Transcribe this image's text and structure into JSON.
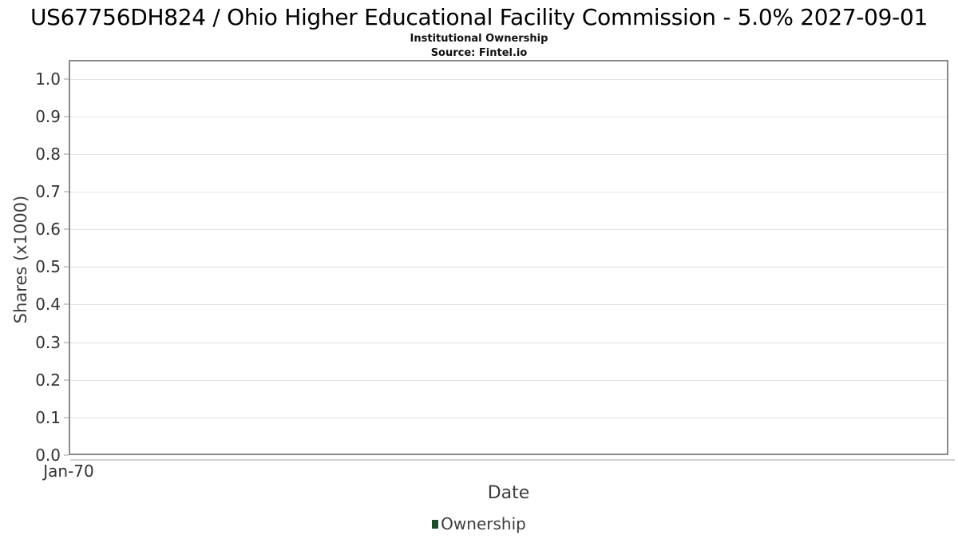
{
  "page": {
    "title": "US67756DH824 / Ohio Higher Educational Facility Commission - 5.0% 2027-09-01",
    "subtitle": "Institutional Ownership",
    "source": "Source: Fintel.io"
  },
  "chart_data": {
    "type": "line",
    "title": "US67756DH824 / Ohio Higher Educational Facility Commission - 5.0% 2027-09-01",
    "subtitle": "Institutional Ownership",
    "source": "Source: Fintel.io",
    "xlabel": "Date",
    "ylabel": "Shares (x1000)",
    "ylim": [
      0.0,
      1.05
    ],
    "grid": true,
    "y_ticks": [
      {
        "value": 0.0,
        "label": "0.0"
      },
      {
        "value": 0.1,
        "label": "0.1"
      },
      {
        "value": 0.2,
        "label": "0.2"
      },
      {
        "value": 0.3,
        "label": "0.3"
      },
      {
        "value": 0.4,
        "label": "0.4"
      },
      {
        "value": 0.5,
        "label": "0.5"
      },
      {
        "value": 0.6,
        "label": "0.6"
      },
      {
        "value": 0.7,
        "label": "0.7"
      },
      {
        "value": 0.8,
        "label": "0.8"
      },
      {
        "value": 0.9,
        "label": "0.9"
      },
      {
        "value": 1.0,
        "label": "1.0"
      }
    ],
    "x_ticks": [
      {
        "pos": 0.0,
        "label": "Jan-70"
      }
    ],
    "legend": {
      "position": "bottom",
      "entries": [
        {
          "label": "Ownership",
          "color": "#1d4d2b"
        }
      ]
    },
    "series": [
      {
        "name": "Ownership",
        "x": [],
        "y": []
      }
    ]
  },
  "colors": {
    "plot_border": "#8a8a8a",
    "gridline": "#e2e2e2",
    "tick": "#cccccc",
    "axis_text": "#333333",
    "label_text": "#3d3d3d",
    "legend_marker": "#1d4d2b"
  }
}
